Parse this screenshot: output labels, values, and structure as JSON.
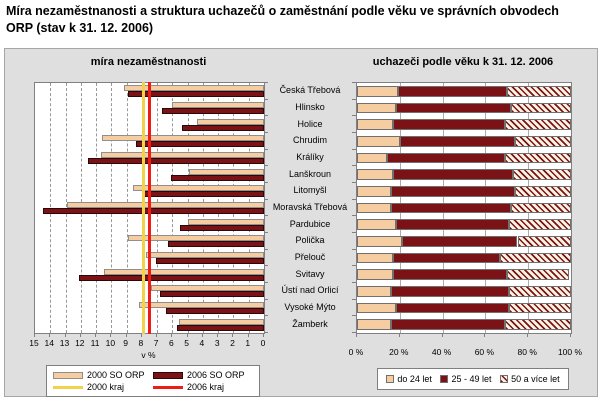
{
  "title": "Míra nezaměstnanosti a struktura uchazečů o zaměstnání podle věku ve správních obvodech\nORP (stav k 31. 12. 2006)",
  "categories": [
    "Česká Třebová",
    "Hlinsko",
    "Holice",
    "Chrudim",
    "Králíky",
    "Lanškroun",
    "Litomyšl",
    "Moravská Třebová",
    "Pardubice",
    "Polička",
    "Přelouč",
    "Svitavy",
    "Ústí nad Orlicí",
    "Vysoké Mýto",
    "Žamberk"
  ],
  "colors": {
    "panel_bg": "#DFDFDF",
    "plot_bg": "#FFFFFF",
    "plot_border": "#808080",
    "grid_dashed": "#999999",
    "grid_solid": "#ABABAB",
    "bar_2000": "#F5CDA0",
    "bar_2000_border": "#8F8F8F",
    "bar_2006": "#7B1215",
    "bar_2006_border": "#2B0707",
    "line_2000": "#F2D24B",
    "line_2006": "#ED1C16",
    "hatch_fg": "#7B1215",
    "hatch_bg": "#FBF2E2"
  },
  "chart_data": [
    {
      "type": "bar",
      "orientation": "horizontal",
      "title": "míra nezaměstnanosti",
      "xlabel": "v %",
      "x_axis": {
        "min": 0,
        "max": 15,
        "reversed": true,
        "tick_step": 1,
        "ticks": [
          15,
          14,
          13,
          12,
          11,
          10,
          9,
          8,
          7,
          6,
          5,
          4,
          3,
          2,
          1,
          0
        ]
      },
      "grid": "dashed-vertical",
      "series": [
        {
          "name": "2000 SO ORP",
          "color": "#F5CDA0",
          "values": [
            9.2,
            6.0,
            4.4,
            10.6,
            10.7,
            4.9,
            8.6,
            12.9,
            5.0,
            8.9,
            7.7,
            10.5,
            7.4,
            8.2,
            5.6
          ]
        },
        {
          "name": "2006 SO ORP",
          "color": "#7B1215",
          "values": [
            8.9,
            6.7,
            5.4,
            8.4,
            11.5,
            6.1,
            8.0,
            14.5,
            5.5,
            6.3,
            7.1,
            12.1,
            6.8,
            6.4,
            5.7
          ]
        }
      ],
      "reference_lines": [
        {
          "name": "2000 kraj",
          "color": "#F2D24B",
          "value": 7.9
        },
        {
          "name": "2006 kraj",
          "color": "#ED1C16",
          "value": 7.5
        }
      ],
      "legend_position": "bottom"
    },
    {
      "type": "stacked-bar-100",
      "orientation": "horizontal",
      "title": "uchazeči podle věku k 31. 12. 2006",
      "x_axis": {
        "min": 0,
        "max": 100,
        "tick_values": [
          0,
          20,
          40,
          60,
          80,
          100
        ],
        "tick_labels": [
          "0 %",
          "20 %",
          "40 %",
          "60 %",
          "80 %",
          "100 %"
        ]
      },
      "grid": "solid-vertical",
      "series": [
        {
          "name": "do 24 let",
          "color": "#F5CDA0",
          "pattern": "solid",
          "values": [
            19,
            18,
            17,
            20,
            14,
            17,
            16,
            16,
            18,
            21,
            17,
            17,
            16,
            18,
            16
          ]
        },
        {
          "name": "25 - 49 let",
          "color": "#7B1215",
          "pattern": "solid",
          "values": [
            51,
            54,
            52,
            54,
            55,
            56,
            58,
            56,
            53,
            54,
            50,
            53,
            55,
            53,
            53
          ]
        },
        {
          "name": "50 a více let",
          "color": "#7B1215",
          "pattern": "hatched",
          "values": [
            30,
            28,
            31,
            26,
            31,
            27,
            26,
            28,
            29,
            25,
            33,
            29,
            29,
            29,
            31
          ]
        }
      ],
      "legend_position": "bottom"
    }
  ]
}
